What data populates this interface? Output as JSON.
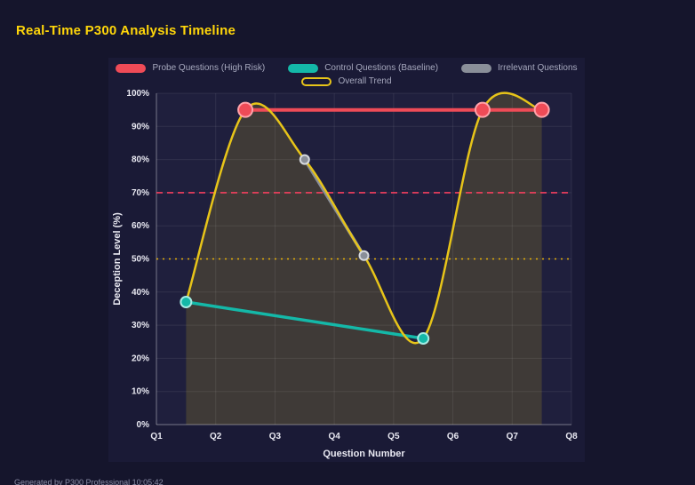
{
  "page": {
    "title": "Real-Time P300 Analysis Timeline",
    "footer": "Generated by P300 Professional  10:05:42"
  },
  "colors": {
    "page_bg": "#15152c",
    "panel_bg": "#1a1a36",
    "plot_bg": "#1f1f3d",
    "grid": "rgba(255,255,255,0.08)",
    "axis": "rgba(255,255,255,0.35)",
    "tick_text": "#e9e9f2",
    "title_text": "#ffd60a",
    "legend_text": "#a7a9be",
    "area_fill": "rgba(231,196,25,0.16)"
  },
  "chart_data": {
    "type": "line",
    "xlabel": "Question Number",
    "ylabel": "Deception Level (%)",
    "xlim": [
      1,
      8
    ],
    "ylim": [
      0,
      100
    ],
    "x_ticks": [
      {
        "v": 1,
        "label": "Q1"
      },
      {
        "v": 2,
        "label": "Q2"
      },
      {
        "v": 3,
        "label": "Q3"
      },
      {
        "v": 4,
        "label": "Q4"
      },
      {
        "v": 5,
        "label": "Q5"
      },
      {
        "v": 6,
        "label": "Q6"
      },
      {
        "v": 7,
        "label": "Q7"
      },
      {
        "v": 8,
        "label": "Q8"
      }
    ],
    "y_ticks": [
      {
        "v": 0,
        "label": "0%"
      },
      {
        "v": 10,
        "label": "10%"
      },
      {
        "v": 20,
        "label": "20%"
      },
      {
        "v": 30,
        "label": "30%"
      },
      {
        "v": 40,
        "label": "40%"
      },
      {
        "v": 50,
        "label": "50%"
      },
      {
        "v": 60,
        "label": "60%"
      },
      {
        "v": 70,
        "label": "70%"
      },
      {
        "v": 80,
        "label": "80%"
      },
      {
        "v": 90,
        "label": "90%"
      },
      {
        "v": 100,
        "label": "100%"
      }
    ],
    "series": [
      {
        "name": "Probe Questions (High Risk)",
        "color": "#ef4b57",
        "point_border": "#ffa2aa",
        "line_width": 4,
        "point_radius": 8,
        "swatch": "solid",
        "smooth": false,
        "fill": false,
        "x": [
          2.5,
          6.5,
          7.5
        ],
        "y": [
          95,
          95,
          95
        ]
      },
      {
        "name": "Control Questions (Baseline)",
        "color": "#14b8a8",
        "point_border": "#a5ece4",
        "line_width": 3.5,
        "point_radius": 6,
        "swatch": "solid",
        "smooth": false,
        "fill": false,
        "x": [
          1.5,
          5.5
        ],
        "y": [
          37,
          26
        ]
      },
      {
        "name": "Irrelevant Questions",
        "color": "#8a8f99",
        "point_border": "#d6d9de",
        "line_width": 3.5,
        "point_radius": 5,
        "swatch": "solid",
        "smooth": false,
        "fill": false,
        "x": [
          3.5,
          4.5
        ],
        "y": [
          80,
          51
        ]
      },
      {
        "name": "Overall Trend",
        "color": "#e7c419",
        "point_border": "#e7c419",
        "line_width": 2.5,
        "point_radius": 0,
        "swatch": "outline",
        "smooth": true,
        "fill": true,
        "x": [
          1.5,
          2.5,
          3.5,
          4.5,
          5.5,
          6.5,
          7.5
        ],
        "y": [
          37,
          95,
          80,
          51,
          26,
          95,
          95
        ]
      }
    ],
    "reference_lines": [
      {
        "y": 70,
        "color": "#f43f5e",
        "dash": "7 5",
        "width": 1.6
      },
      {
        "y": 50,
        "color": "#eab308",
        "dash": "2 5",
        "width": 1.6
      }
    ],
    "legend_rows": [
      [
        0,
        1,
        2
      ],
      [
        3
      ]
    ],
    "legend_position": "top"
  }
}
